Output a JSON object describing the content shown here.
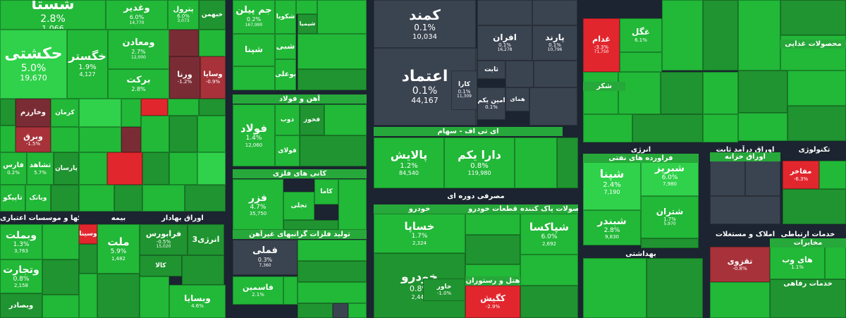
{
  "colors": {
    "up_bright": "#2fd24a",
    "up_mid": "#22b838",
    "up_dim": "#1f9430",
    "flat_dark": "#3a4350",
    "down_red": "#e2262e",
    "down_mid": "#a8323a",
    "down_dark": "#7a2c35",
    "background": "#1b2430"
  },
  "groups": [
    {
      "label": "بانکها و موسسات اعتباری"
    },
    {
      "label": "بیمه"
    },
    {
      "label": "اوراق بهادار"
    },
    {
      "label": "آهن و فولاد"
    },
    {
      "label": "کانی های فلزی"
    },
    {
      "label": "تولید فلزات گرانبهای غیرآهن"
    },
    {
      "label": "ای تی اف - سهام"
    },
    {
      "label": "مصرفی دوره ای"
    },
    {
      "label": "خودرو"
    },
    {
      "label": "قطعات خودرو"
    },
    {
      "label": "محصولات پاک کننده"
    },
    {
      "label": "هتل و رستوران"
    },
    {
      "label": "انرژی"
    },
    {
      "label": "فراورده های نفتی"
    },
    {
      "label": "اوراق درآمد ثابت"
    },
    {
      "label": "اوراق خزانه"
    },
    {
      "label": "تکنولوژی"
    },
    {
      "label": "املاک و مستغلات"
    },
    {
      "label": "بهداشتی"
    },
    {
      "label": "خدمات ارتباطی"
    },
    {
      "label": "خدمات رفاهی"
    },
    {
      "label": "شکر"
    },
    {
      "label": "مخابرات"
    },
    {
      "label": "محصولات غذایی"
    }
  ],
  "tiles": [
    {
      "name": "شستا",
      "pct": "2.8%",
      "vol": "1,066"
    },
    {
      "name": "وغدیر",
      "pct": "6.0%",
      "vol": "14,770"
    },
    {
      "name": "پترول",
      "pct": "6.0%",
      "vol": "3,073"
    },
    {
      "name": "خبهمن",
      "pct": "",
      "vol": ""
    },
    {
      "name": "حکشتی",
      "pct": "5.0%",
      "vol": "19,670"
    },
    {
      "name": "خگستر",
      "pct": "1.9%",
      "vol": "4,127"
    },
    {
      "name": "ومعادن",
      "pct": "2.7%",
      "vol": "12,000"
    },
    {
      "name": "برکت",
      "pct": "2.8%",
      "vol": ""
    },
    {
      "name": "ورنا",
      "pct": "-1.2%",
      "vol": ""
    },
    {
      "name": "وسایا",
      "pct": "-0.9%",
      "vol": ""
    },
    {
      "name": "وخارزم",
      "pct": "",
      "vol": ""
    },
    {
      "name": "کرمان",
      "pct": "",
      "vol": ""
    },
    {
      "name": "وبرق",
      "pct": "-1.5%",
      "vol": ""
    },
    {
      "name": "تشاهد",
      "pct": "5.7%",
      "vol": ""
    },
    {
      "name": "پارسان",
      "pct": "",
      "vol": ""
    },
    {
      "name": "فارس",
      "pct": "0.2%",
      "vol": ""
    },
    {
      "name": "تاپیکو",
      "pct": "",
      "vol": ""
    },
    {
      "name": "وبانک",
      "pct": "",
      "vol": ""
    },
    {
      "name": "وبملت",
      "pct": "1.3%",
      "vol": "3,763"
    },
    {
      "name": "وتجارت",
      "pct": "0.8%",
      "vol": "2,158"
    },
    {
      "name": "وبصادر",
      "pct": "",
      "vol": ""
    },
    {
      "name": "وسینا",
      "pct": "",
      "vol": ""
    },
    {
      "name": "ملت",
      "pct": "5.9%",
      "vol": "1,482"
    },
    {
      "name": "فرابورس",
      "pct": "-0.5%",
      "vol": "15,020"
    },
    {
      "name": "انرژی3",
      "pct": "",
      "vol": ""
    },
    {
      "name": "کالا",
      "pct": "",
      "vol": ""
    },
    {
      "name": "وبسایا",
      "pct": "4.6%",
      "vol": ""
    },
    {
      "name": "جم پیلن",
      "pct": "0.2%",
      "vol": "167,990"
    },
    {
      "name": "شکویا",
      "pct": "",
      "vol": ""
    },
    {
      "name": "شیمیا",
      "pct": "",
      "vol": ""
    },
    {
      "name": "شبی",
      "pct": "",
      "vol": ""
    },
    {
      "name": "شپنا",
      "pct": "",
      "vol": ""
    },
    {
      "name": "بوعلی",
      "pct": "",
      "vol": ""
    },
    {
      "name": "فولاد",
      "pct": "1.4%",
      "vol": "12,060"
    },
    {
      "name": "ذوب",
      "pct": "",
      "vol": ""
    },
    {
      "name": "فخوز",
      "pct": "",
      "vol": ""
    },
    {
      "name": "فولای",
      "pct": "",
      "vol": ""
    },
    {
      "name": "فزر",
      "pct": "4.7%",
      "vol": "35,750"
    },
    {
      "name": "کاما",
      "pct": "",
      "vol": ""
    },
    {
      "name": "تجلی",
      "pct": "",
      "vol": ""
    },
    {
      "name": "فملی",
      "pct": "0.3%",
      "vol": "7,360"
    },
    {
      "name": "فاسمین",
      "pct": "2.1%",
      "vol": ""
    },
    {
      "name": "کمند",
      "pct": "0.1%",
      "vol": "10,034"
    },
    {
      "name": "اعتماد",
      "pct": "0.1%",
      "vol": "44,167"
    },
    {
      "name": "افران",
      "pct": "0.1%",
      "vol": "16,278"
    },
    {
      "name": "پارند",
      "pct": "0.1%",
      "vol": "10,796"
    },
    {
      "name": "ثابت",
      "pct": "",
      "vol": ""
    },
    {
      "name": "کارا",
      "pct": "0.1%",
      "vol": "11,309"
    },
    {
      "name": "امین یکم",
      "pct": "0.1%",
      "vol": ""
    },
    {
      "name": "همای",
      "pct": "",
      "vol": ""
    },
    {
      "name": "پالایش",
      "pct": "1.2%",
      "vol": "84,540"
    },
    {
      "name": "دارا یکم",
      "pct": "0.8%",
      "vol": "119,980"
    },
    {
      "name": "خساپا",
      "pct": "1.7%",
      "vol": "2,324"
    },
    {
      "name": "خودرو",
      "pct": "0.8%",
      "vol": "2,449"
    },
    {
      "name": "خاور",
      "pct": "-1.0%",
      "vol": ""
    },
    {
      "name": "کگیش",
      "pct": "-2.9%",
      "vol": ""
    },
    {
      "name": "شپاکسا",
      "pct": "6.0%",
      "vol": "2,692"
    },
    {
      "name": "غدام",
      "pct": "-3.3%",
      "vol": "71,750"
    },
    {
      "name": "غگل",
      "pct": "6.1%",
      "vol": ""
    },
    {
      "name": "شپنا",
      "pct": "2.4%",
      "vol": "7,190"
    },
    {
      "name": "شبریز",
      "pct": "6.0%",
      "vol": "7,980"
    },
    {
      "name": "شبندر",
      "pct": "2.8%",
      "vol": "9,830"
    },
    {
      "name": "شتران",
      "pct": "1.7%",
      "vol": "5,970"
    },
    {
      "name": "مفاخر",
      "pct": "-6.3%",
      "vol": ""
    },
    {
      "name": "تقزوی",
      "pct": "-0.8%",
      "vol": ""
    },
    {
      "name": "های وب",
      "pct": "1.1%",
      "vol": ""
    }
  ]
}
